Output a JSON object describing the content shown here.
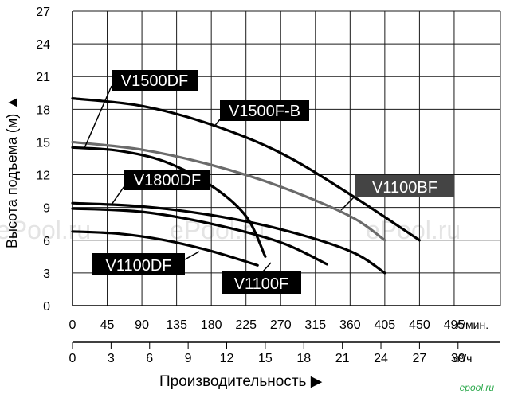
{
  "chart_data": {
    "type": "line",
    "xlabel": "Производительность",
    "ylabel": "Высота подъема (м)",
    "y_ticks": [
      0,
      3,
      6,
      9,
      12,
      15,
      18,
      21,
      24,
      27
    ],
    "x_ticks_lmin": [
      0,
      45,
      90,
      135,
      180,
      225,
      270,
      315,
      360,
      405,
      450,
      495
    ],
    "x_unit_lmin": "л/мин.",
    "x_ticks_m3h": [
      0,
      3,
      6,
      9,
      12,
      15,
      18,
      21,
      24,
      27,
      30
    ],
    "x_unit_m3h": "м³/ч",
    "xlim_lmin": [
      0,
      555
    ],
    "ylim": [
      0,
      27
    ],
    "grid": true,
    "series": [
      {
        "name": "V1500F-B",
        "color": "#000000",
        "x_lmin": [
          0,
          90,
          180,
          270,
          360,
          450
        ],
        "y": [
          19.0,
          18.3,
          16.6,
          14.0,
          10.2,
          6.0
        ]
      },
      {
        "name": "V1100BF",
        "color": "#6b6b6b",
        "x_lmin": [
          0,
          90,
          180,
          270,
          360,
          405
        ],
        "y": [
          15.0,
          14.3,
          12.9,
          10.9,
          8.2,
          6.0
        ]
      },
      {
        "name": "V1500DF",
        "color": "#000000",
        "x_lmin": [
          0,
          60,
          120,
          180,
          225,
          250
        ],
        "y": [
          14.5,
          14.2,
          13.2,
          11.0,
          8.2,
          4.5
        ]
      },
      {
        "name": "V1800DF",
        "color": "#000000",
        "x_lmin": [
          0,
          90,
          180,
          270,
          360,
          405
        ],
        "y": [
          9.4,
          9.1,
          8.3,
          7.0,
          5.0,
          3.0
        ]
      },
      {
        "name": "V1100F",
        "color": "#000000",
        "x_lmin": [
          0,
          90,
          180,
          270,
          330
        ],
        "y": [
          8.9,
          8.6,
          7.5,
          5.8,
          3.8
        ]
      },
      {
        "name": "V1100DF",
        "color": "#000000",
        "x_lmin": [
          0,
          60,
          120,
          180,
          240
        ],
        "y": [
          6.8,
          6.6,
          6.0,
          5.0,
          3.7
        ]
      }
    ]
  },
  "watermark": "ePool.ru",
  "site_logo": "epool.ru"
}
